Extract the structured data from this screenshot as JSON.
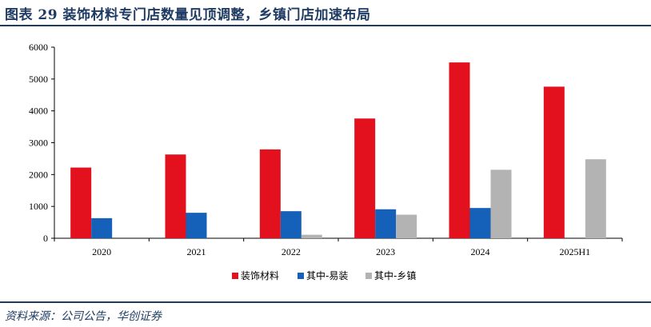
{
  "header": {
    "title": "图表 29   装饰材料专门店数量见顶调整，乡镇门店加速布局"
  },
  "footer": {
    "source": "资料来源：公司公告，华创证券"
  },
  "chart_data": {
    "type": "bar",
    "title": "",
    "xlabel": "",
    "ylabel": "",
    "categories": [
      "2020",
      "2021",
      "2022",
      "2023",
      "2024",
      "2025H1"
    ],
    "ylim": [
      0,
      6000
    ],
    "yticks": [
      0,
      1000,
      2000,
      3000,
      4000,
      5000,
      6000
    ],
    "grid": false,
    "legend_position": "bottom",
    "series": [
      {
        "name": "装饰材料",
        "color": "#e3101e",
        "values": [
          2220,
          2630,
          2790,
          3760,
          5520,
          4760
        ]
      },
      {
        "name": "其中-易装",
        "color": "#1560b8",
        "values": [
          630,
          800,
          850,
          910,
          950,
          null
        ]
      },
      {
        "name": "其中-乡镇",
        "color": "#b3b3b3",
        "values": [
          null,
          null,
          110,
          740,
          2150,
          2480
        ]
      }
    ]
  }
}
